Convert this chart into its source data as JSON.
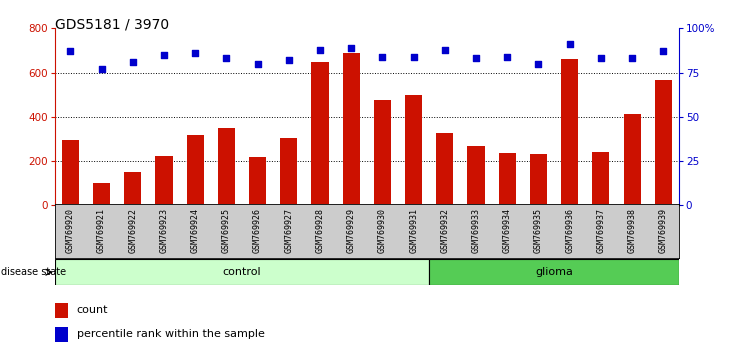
{
  "title": "GDS5181 / 3970",
  "samples": [
    "GSM769920",
    "GSM769921",
    "GSM769922",
    "GSM769923",
    "GSM769924",
    "GSM769925",
    "GSM769926",
    "GSM769927",
    "GSM769928",
    "GSM769929",
    "GSM769930",
    "GSM769931",
    "GSM769932",
    "GSM769933",
    "GSM769934",
    "GSM769935",
    "GSM769936",
    "GSM769937",
    "GSM769938",
    "GSM769939"
  ],
  "counts": [
    295,
    100,
    150,
    225,
    320,
    350,
    220,
    305,
    650,
    690,
    475,
    500,
    325,
    270,
    235,
    230,
    660,
    240,
    415,
    565
  ],
  "percentiles": [
    87,
    77,
    81,
    85,
    86,
    83,
    80,
    82,
    88,
    89,
    84,
    84,
    88,
    83,
    84,
    80,
    91,
    83,
    83,
    87
  ],
  "ctrl_count": 12,
  "glioma_count": 8,
  "bar_color": "#cc1100",
  "dot_color": "#0000cc",
  "control_color": "#ccffcc",
  "glioma_color": "#55cc55",
  "bg_color": "#ffffff",
  "tick_bg": "#cccccc",
  "ylim_left": [
    0,
    800
  ],
  "ylim_right": [
    0,
    100
  ],
  "yticks_left": [
    0,
    200,
    400,
    600,
    800
  ],
  "yticks_right": [
    0,
    25,
    50,
    75,
    100
  ],
  "ytick_right_labels": [
    "0",
    "25",
    "50",
    "75",
    "100%"
  ],
  "grid_values": [
    200,
    400,
    600
  ],
  "title_fontsize": 10,
  "axis_tick_color_left": "#cc1100",
  "axis_tick_color_right": "#0000cc"
}
